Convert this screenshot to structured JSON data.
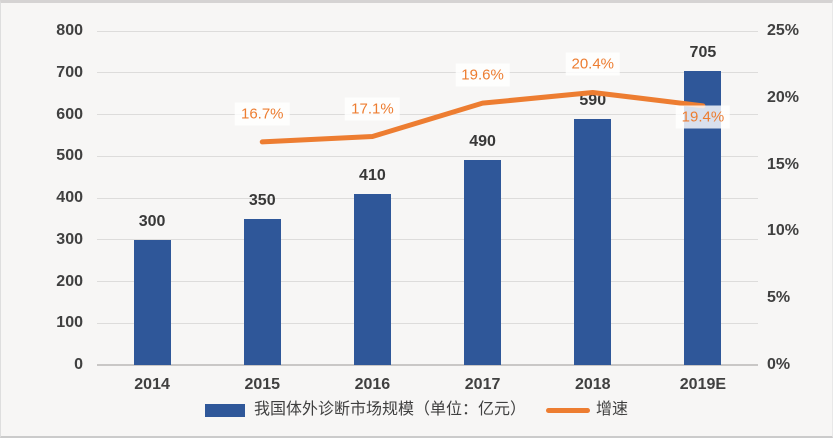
{
  "chart_data": {
    "type": "combo",
    "title": "",
    "categories": [
      "2014",
      "2015",
      "2016",
      "2017",
      "2018",
      "2019E"
    ],
    "series": [
      {
        "name": "我国体外诊断市场规模（单位：亿元）",
        "type": "bar",
        "axis": "left",
        "color": "#2F5799",
        "values": [
          300,
          350,
          410,
          490,
          590,
          705
        ],
        "data_labels": [
          "300",
          "350",
          "410",
          "490",
          "590",
          "705"
        ]
      },
      {
        "name": "增速",
        "type": "line",
        "axis": "right",
        "color": "#ED7D31",
        "values": [
          null,
          16.7,
          17.1,
          19.6,
          20.4,
          19.4
        ],
        "data_labels": [
          null,
          "16.7%",
          "17.1%",
          "19.6%",
          "20.4%",
          "19.4%"
        ],
        "label_placement": [
          null,
          "above",
          "above",
          "above",
          "above",
          "below"
        ]
      }
    ],
    "left_axis": {
      "min": 0,
      "max": 800,
      "step": 100,
      "tick_labels": [
        "0",
        "100",
        "200",
        "300",
        "400",
        "500",
        "600",
        "700",
        "800"
      ]
    },
    "right_axis": {
      "min": 0,
      "max": 25,
      "step": 5,
      "tick_labels": [
        "0%",
        "5%",
        "10%",
        "15%",
        "20%",
        "25%"
      ]
    },
    "grid": true,
    "legend_position": "bottom",
    "colors": {
      "background": "#F7F6F5",
      "bar": "#2F5799",
      "line": "#ED7D31",
      "text": "#404040",
      "gridline": "#DDDCDB"
    }
  }
}
